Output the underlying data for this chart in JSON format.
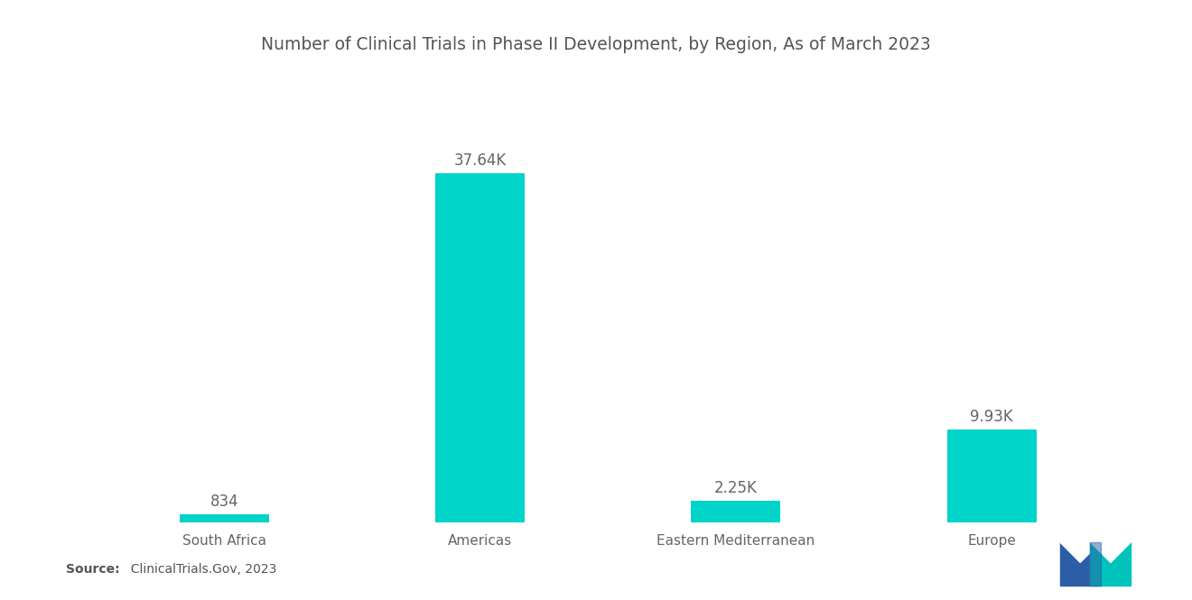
{
  "title": "Number of Clinical Trials in Phase II Development, by Region, As of March 2023",
  "categories": [
    "South Africa",
    "Americas",
    "Eastern Mediterranean",
    "Europe"
  ],
  "values": [
    834,
    37640,
    2250,
    9930
  ],
  "labels": [
    "834",
    "37.64K",
    "2.25K",
    "9.93K"
  ],
  "bar_color": "#00D4C8",
  "background_color": "#ffffff",
  "title_fontsize": 13.5,
  "label_fontsize": 12,
  "tick_fontsize": 11,
  "source_bold": "Source:",
  "source_rest": "  ClinicalTrials.Gov, 2023",
  "ylim": [
    0,
    44000
  ],
  "bar_width": 0.35,
  "logo_blue": "#2B5EA7",
  "logo_teal": "#00C4BC"
}
